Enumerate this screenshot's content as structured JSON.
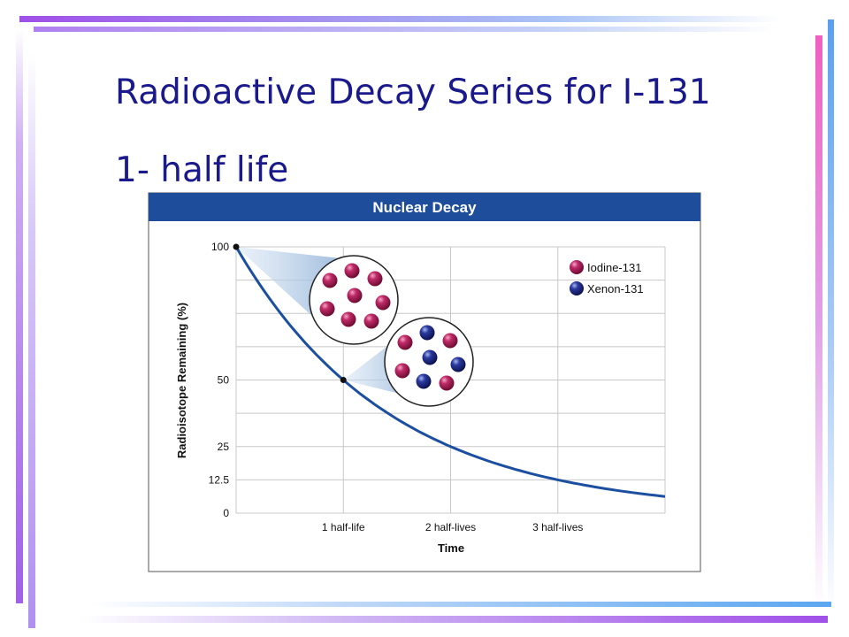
{
  "slide": {
    "title": "Radioactive Decay Series for I-131",
    "subtitle": "1- half life"
  },
  "chart_data": {
    "type": "line",
    "title": "Nuclear Decay",
    "xlabel": "Time",
    "ylabel": "Radioisotope Remaining (%)",
    "x_ticks": [
      "1 half-life",
      "2 half-lives",
      "3 half-lives"
    ],
    "y_ticks": [
      "100",
      "50",
      "25",
      "12.5",
      "0"
    ],
    "xlim": [
      0,
      4
    ],
    "ylim": [
      0,
      100
    ],
    "grid": true,
    "series": [
      {
        "x": [
          0,
          0.5,
          1,
          1.5,
          2,
          2.5,
          3,
          3.5,
          4
        ],
        "values": [
          100,
          70.7,
          50,
          35.4,
          25,
          17.7,
          12.5,
          8.8,
          6.3
        ],
        "color": "#1c4fa0"
      }
    ],
    "highlight_points": [
      {
        "x": 0,
        "y": 100
      },
      {
        "x": 1,
        "y": 50
      }
    ],
    "legend": {
      "placement": "top-right",
      "entries": [
        {
          "label": "Iodine-131",
          "color": "#a0174f"
        },
        {
          "label": "Xenon-131",
          "color": "#1c2a8c"
        }
      ]
    },
    "insets": [
      {
        "at_x": 0,
        "iodine_count": 8,
        "xenon_count": 0
      },
      {
        "at_x": 1,
        "iodine_count": 4,
        "xenon_count": 4
      }
    ],
    "colors": {
      "header": "#1d4d9b",
      "curve": "#1c4fa0",
      "grid": "#c8c8c8"
    }
  }
}
